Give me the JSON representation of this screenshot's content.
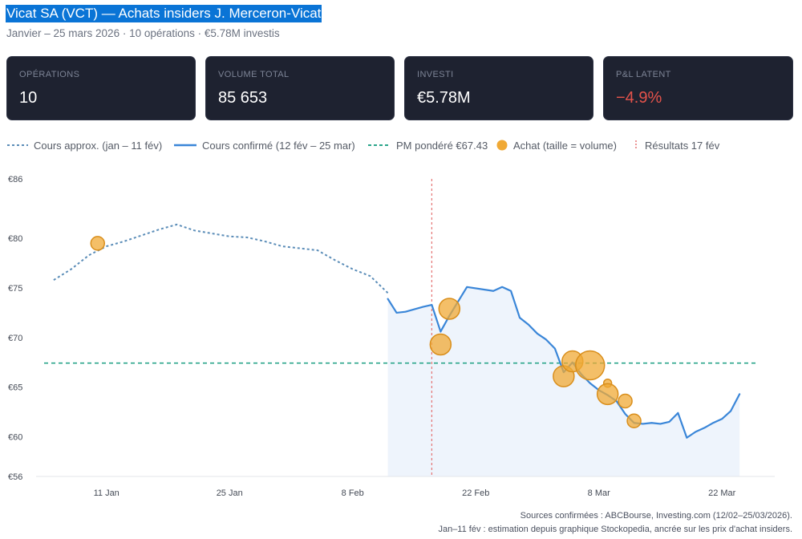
{
  "header": {
    "title": "Vicat SA (VCT) — Achats insiders J. Merceron-Vicat",
    "subtitle": "Janvier – 25 mars 2026 · 10 opérations · €5.78M investis"
  },
  "cards": [
    {
      "label": "OPÉRATIONS",
      "value": "10"
    },
    {
      "label": "VOLUME TOTAL",
      "value": "85 653"
    },
    {
      "label": "INVESTI",
      "value": "€5.78M"
    },
    {
      "label": "P&L LATENT",
      "value": "−4.9%"
    }
  ],
  "legend": [
    {
      "label": "Cours approx. (jan – 11 fév)",
      "color": "#5b8db8",
      "style": "dotted-line"
    },
    {
      "label": "Cours confirmé (12 fév – 25 mar)",
      "color": "#3a86d8",
      "style": "solid-line"
    },
    {
      "label": "PM pondéré €67.43",
      "color": "#2aa58a",
      "style": "dashed-line"
    },
    {
      "label": "Achat (taille = volume)",
      "color": "#f0a935",
      "style": "circle"
    },
    {
      "label": "Résultats 17 fév",
      "color": "#e57373",
      "style": "dotted-vertical"
    }
  ],
  "chart_data": {
    "type": "line",
    "x_axis": {
      "type": "date",
      "range": [
        "2026-01-03",
        "2026-03-28"
      ],
      "ticks": [
        {
          "date": "2026-01-11",
          "label": "11 Jan"
        },
        {
          "date": "2026-01-25",
          "label": "25 Jan"
        },
        {
          "date": "2026-02-08",
          "label": "8 Feb"
        },
        {
          "date": "2026-02-22",
          "label": "22 Feb"
        },
        {
          "date": "2026-03-08",
          "label": "8 Mar"
        },
        {
          "date": "2026-03-22",
          "label": "22 Mar"
        }
      ]
    },
    "y_axis": {
      "range": [
        56,
        86
      ],
      "ticks": [
        {
          "value": 56,
          "label": "€56"
        },
        {
          "value": 60,
          "label": "€60"
        },
        {
          "value": 65,
          "label": "€65"
        },
        {
          "value": 70,
          "label": "€70"
        },
        {
          "value": 75,
          "label": "€75"
        },
        {
          "value": 80,
          "label": "€80"
        },
        {
          "value": 86,
          "label": "€86"
        }
      ]
    },
    "grid": false,
    "series": [
      {
        "name": "Cours approx. (jan – 11 fév)",
        "style": "dotted",
        "color": "#5b8db8",
        "points": [
          [
            "2026-01-05",
            75.8
          ],
          [
            "2026-01-07",
            76.9
          ],
          [
            "2026-01-09",
            78.3
          ],
          [
            "2026-01-11",
            79.2
          ],
          [
            "2026-01-13",
            79.7
          ],
          [
            "2026-01-15",
            80.3
          ],
          [
            "2026-01-17",
            80.9
          ],
          [
            "2026-01-19",
            81.4
          ],
          [
            "2026-01-21",
            80.8
          ],
          [
            "2026-01-23",
            80.5
          ],
          [
            "2026-01-25",
            80.2
          ],
          [
            "2026-01-27",
            80.1
          ],
          [
            "2026-01-29",
            79.7
          ],
          [
            "2026-01-31",
            79.2
          ],
          [
            "2026-02-02",
            79.0
          ],
          [
            "2026-02-04",
            78.8
          ],
          [
            "2026-02-06",
            77.8
          ],
          [
            "2026-02-08",
            76.9
          ],
          [
            "2026-02-10",
            76.2
          ],
          [
            "2026-02-12",
            74.5
          ]
        ]
      },
      {
        "name": "Cours confirmé (12 fév – 25 mar)",
        "style": "solid",
        "color": "#3a86d8",
        "points": [
          [
            "2026-02-12",
            73.9
          ],
          [
            "2026-02-13",
            72.5
          ],
          [
            "2026-02-14",
            72.6
          ],
          [
            "2026-02-16",
            73.1
          ],
          [
            "2026-02-17",
            73.3
          ],
          [
            "2026-02-18",
            70.6
          ],
          [
            "2026-02-19",
            72.2
          ],
          [
            "2026-02-21",
            75.1
          ],
          [
            "2026-02-24",
            74.7
          ],
          [
            "2026-02-25",
            75.1
          ],
          [
            "2026-02-26",
            74.7
          ],
          [
            "2026-02-27",
            72.0
          ],
          [
            "2026-02-28",
            71.3
          ],
          [
            "2026-03-01",
            70.4
          ],
          [
            "2026-03-02",
            69.8
          ],
          [
            "2026-03-03",
            68.9
          ],
          [
            "2026-03-04",
            66.5
          ],
          [
            "2026-03-05",
            67.5
          ],
          [
            "2026-03-06",
            66.3
          ],
          [
            "2026-03-07",
            65.4
          ],
          [
            "2026-03-08",
            64.7
          ],
          [
            "2026-03-09",
            64.2
          ],
          [
            "2026-03-10",
            63.6
          ],
          [
            "2026-03-11",
            62.3
          ],
          [
            "2026-03-12",
            61.4
          ],
          [
            "2026-03-13",
            61.3
          ],
          [
            "2026-03-14",
            61.4
          ],
          [
            "2026-03-15",
            61.3
          ],
          [
            "2026-03-16",
            61.5
          ],
          [
            "2026-03-17",
            62.4
          ],
          [
            "2026-03-18",
            59.9
          ],
          [
            "2026-03-19",
            60.5
          ],
          [
            "2026-03-20",
            60.9
          ],
          [
            "2026-03-21",
            61.4
          ],
          [
            "2026-03-22",
            61.8
          ],
          [
            "2026-03-23",
            62.6
          ],
          [
            "2026-03-24",
            64.3
          ]
        ]
      }
    ],
    "area_under": "Cours confirmé (12 fév – 25 mar)",
    "reference_lines": [
      {
        "kind": "horizontal",
        "value": 67.43,
        "label": "PM pondéré €67.43",
        "color": "#2aa58a"
      },
      {
        "kind": "vertical",
        "date": "2026-02-17",
        "label": "Résultats 17 fév",
        "color": "#e57373"
      }
    ],
    "purchases": [
      {
        "date": "2026-01-10",
        "price": 79.5,
        "size": "small"
      },
      {
        "date": "2026-02-18",
        "price": 69.3,
        "size": "medium"
      },
      {
        "date": "2026-02-19",
        "price": 72.9,
        "size": "medium"
      },
      {
        "date": "2026-03-04",
        "price": 66.1,
        "size": "medium"
      },
      {
        "date": "2026-03-05",
        "price": 67.6,
        "size": "medium"
      },
      {
        "date": "2026-03-07",
        "price": 67.2,
        "size": "large"
      },
      {
        "date": "2026-03-09",
        "price": 65.4,
        "size": "tiny"
      },
      {
        "date": "2026-03-09",
        "price": 64.3,
        "size": "medium"
      },
      {
        "date": "2026-03-11",
        "price": 63.6,
        "size": "small"
      },
      {
        "date": "2026-03-12",
        "price": 61.6,
        "size": "small"
      }
    ]
  },
  "footnotes": [
    "Sources confirmées : ABCBourse, Investing.com (12/02–25/03/2026).",
    "Jan–11 fév : estimation depuis graphique Stockopedia, ancrée sur les prix d'achat insiders."
  ]
}
